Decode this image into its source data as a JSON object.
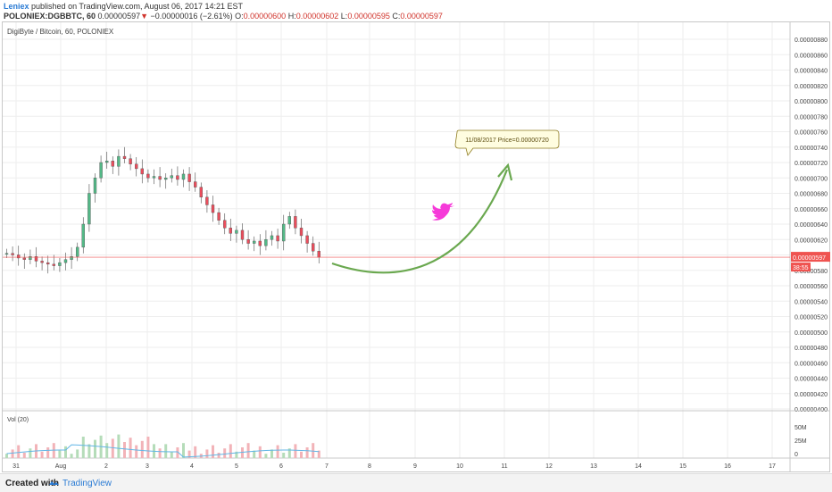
{
  "header": {
    "author": "Leniex",
    "published": "published on TradingView.com, August 06, 2017 14:21 EST",
    "symbol": "POLONIEX:DGBBTC, 60",
    "last": "0.00000597",
    "change_arrow": "▼",
    "change": "−0.00000016 (−2.61%)",
    "o_label": "O:",
    "o_value": "0.00000600",
    "h_label": "H:",
    "h_value": "0.00000602",
    "l_label": "L:",
    "l_value": "0.00000595",
    "c_label": "C:",
    "c_value": "0.00000597"
  },
  "chart_title": "DigiByte / Bitcoin, 60, POLONIEX",
  "volume_label": "Vol (20)",
  "annotation": "11/08/2017 Price=0.00000720",
  "icon": "twitter-bird-icon",
  "footer": {
    "created_with": "Created with",
    "brand": "TradingView"
  },
  "colors": {
    "up": "#53b987",
    "down": "#eb4d5c",
    "accent": "#f63ad9",
    "arrow": "#6aa84f",
    "price_line": "#ef5350"
  },
  "chart_data": {
    "type": "candlestick",
    "price_axis_ticks": [
      "0.00000880",
      "0.00000860",
      "0.00000840",
      "0.00000820",
      "0.00000800",
      "0.00000780",
      "0.00000760",
      "0.00000740",
      "0.00000720",
      "0.00000700",
      "0.00000680",
      "0.00000660",
      "0.00000640",
      "0.00000620",
      "0.00000600",
      "0.00000580",
      "0.00000560",
      "0.00000540",
      "0.00000520",
      "0.00000500",
      "0.00000480",
      "0.00000460",
      "0.00000440",
      "0.00000420",
      "0.00000400"
    ],
    "price_range": [
      4e-06,
      9e-06
    ],
    "current_price": "0.00000597",
    "countdown": "38:55",
    "volume_axis_ticks": [
      "50M",
      "25M",
      "0"
    ],
    "x_axis_ticks": [
      "31",
      "Aug",
      "2",
      "3",
      "4",
      "5",
      "6",
      "7",
      "8",
      "9",
      "10",
      "11",
      "12",
      "13",
      "14",
      "15",
      "16",
      "17"
    ],
    "close_series": [
      602,
      600,
      596,
      594,
      598,
      592,
      590,
      588,
      586,
      590,
      594,
      598,
      610,
      640,
      680,
      700,
      720,
      722,
      715,
      728,
      725,
      718,
      712,
      705,
      700,
      702,
      698,
      700,
      703,
      698,
      705,
      695,
      688,
      675,
      665,
      655,
      645,
      635,
      628,
      632,
      620,
      615,
      618,
      612,
      620,
      625,
      618,
      640,
      650,
      635,
      625,
      615,
      605,
      597
    ],
    "forecast": {
      "label": "11/08/2017 Price=0.00000720",
      "target_price": 7.2e-06
    }
  }
}
